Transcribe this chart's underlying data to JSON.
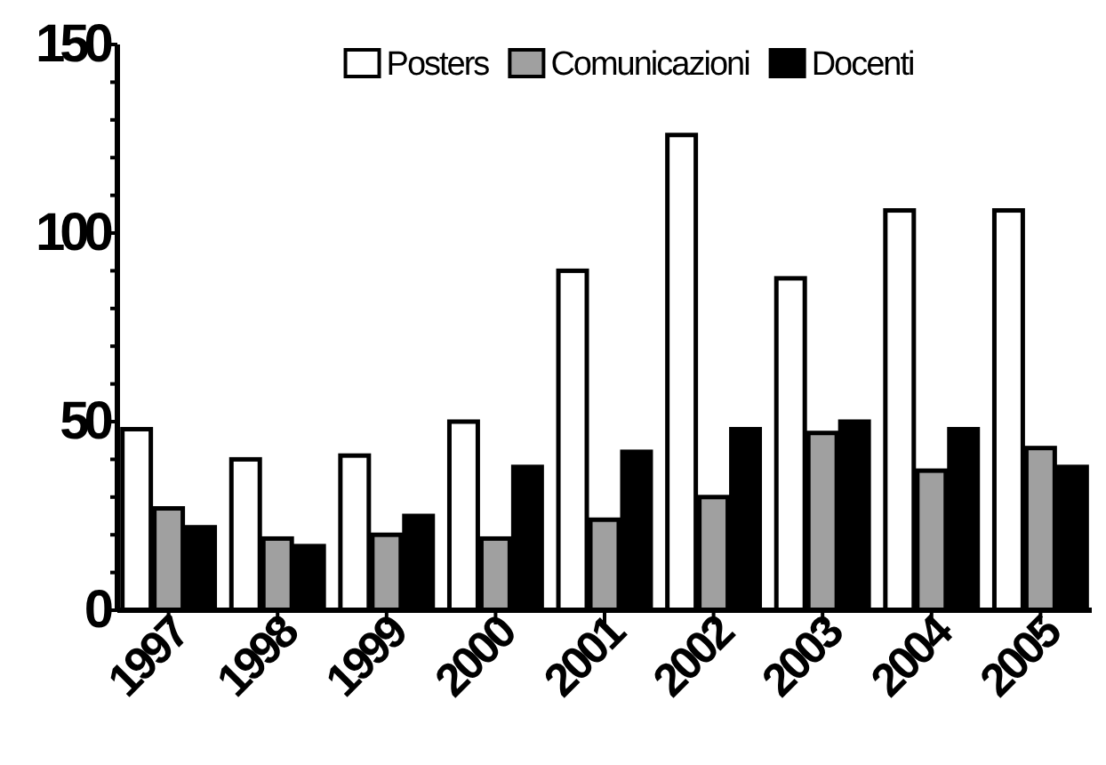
{
  "chart_data": {
    "type": "bar",
    "categories": [
      "1997",
      "1998",
      "1999",
      "2000",
      "2001",
      "2002",
      "2003",
      "2004",
      "2005"
    ],
    "series": [
      {
        "name": "Posters",
        "color": "#ffffff",
        "values": [
          48,
          40,
          41,
          50,
          90,
          126,
          88,
          106,
          106
        ]
      },
      {
        "name": "Comunicazioni",
        "color": "#a0a0a0",
        "values": [
          27,
          19,
          20,
          19,
          24,
          30,
          47,
          37,
          43
        ]
      },
      {
        "name": "Docenti",
        "color": "#000000",
        "values": [
          22,
          17,
          25,
          38,
          42,
          48,
          50,
          48,
          38
        ]
      }
    ],
    "ylim": [
      0,
      150
    ],
    "yticks": [
      0,
      {
        "value": 10,
        "label": null
      },
      {
        "value": 20,
        "label": null
      },
      {
        "value": 30,
        "label": null
      },
      {
        "value": 40,
        "label": null
      },
      50,
      {
        "value": 60,
        "label": null
      },
      {
        "value": 70,
        "label": null
      },
      {
        "value": 80,
        "label": null
      },
      {
        "value": 90,
        "label": null
      },
      100,
      {
        "value": 110,
        "label": null
      },
      {
        "value": 120,
        "label": null
      },
      {
        "value": 130,
        "label": null
      },
      {
        "value": 140,
        "label": null
      },
      150
    ],
    "grid": false,
    "legend": "top"
  }
}
